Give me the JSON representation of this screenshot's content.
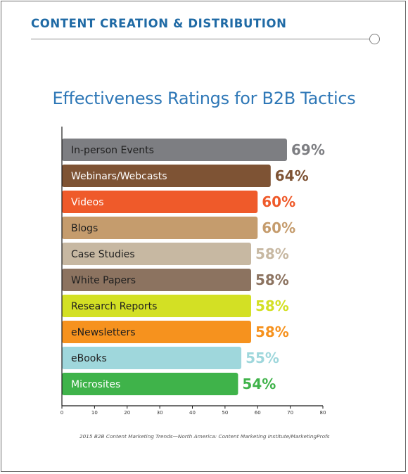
{
  "header": {
    "section_title": "CONTENT CREATION & DISTRIBUTION"
  },
  "source": "2015 B2B Content Marketing Trends—North America: Content Marketing Institute/MarketingProfs",
  "chart_data": {
    "type": "bar",
    "orientation": "horizontal",
    "title": "Effectiveness Ratings for B2B Tactics",
    "xlim": [
      0,
      80
    ],
    "xticks": [
      0,
      10,
      20,
      30,
      40,
      50,
      60,
      70,
      80
    ],
    "grid": false,
    "categories": [
      "In-person Events",
      "Webinars/Webcasts",
      "Videos",
      "Blogs",
      "Case Studies",
      "White Papers",
      "Research Reports",
      "eNewsletters",
      "eBooks",
      "Microsites"
    ],
    "values": [
      69,
      64,
      60,
      60,
      58,
      58,
      58,
      58,
      55,
      54
    ],
    "value_labels": [
      "69%",
      "64%",
      "60%",
      "60%",
      "58%",
      "58%",
      "58%",
      "58%",
      "55%",
      "54%"
    ],
    "colors": [
      "#7d7e82",
      "#7e5334",
      "#ef5a2a",
      "#c59c6d",
      "#c7b8a2",
      "#8c7360",
      "#d3e024",
      "#f6921e",
      "#9fd7dc",
      "#3fb34a"
    ],
    "label_colors": [
      "#1f1f1f",
      "#ffffff",
      "#ffffff",
      "#1f1f1f",
      "#1f1f1f",
      "#1f1f1f",
      "#1f1f1f",
      "#1f1f1f",
      "#1f1f1f",
      "#ffffff"
    ]
  }
}
